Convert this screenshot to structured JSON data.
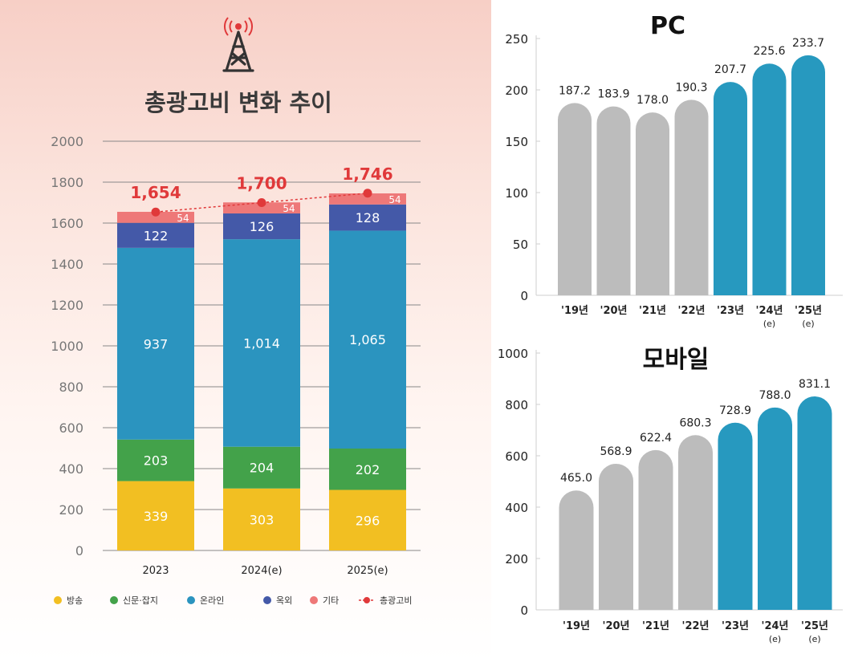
{
  "colors": {
    "broadcast": "#f2bf22",
    "print": "#43a24a",
    "online": "#2b94bf",
    "outdoor": "#4459a8",
    "other": "#ee7878",
    "total": "#e0393a",
    "pc_past": "#bcbcbc",
    "pc_forecast": "#2799bf"
  },
  "chart_data": [
    {
      "type": "bar",
      "stacked": true,
      "icon": "broadcast-tower-icon",
      "title": "총광고비 변화 추이",
      "categories": [
        "2023",
        "2024(e)",
        "2025(e)"
      ],
      "series": [
        {
          "name": "방송",
          "values": [
            339,
            303,
            296
          ]
        },
        {
          "name": "신문·잡지",
          "values": [
            203,
            204,
            202
          ]
        },
        {
          "name": "온라인",
          "values": [
            937,
            1014,
            1065
          ]
        },
        {
          "name": "옥외",
          "values": [
            122,
            126,
            128
          ]
        },
        {
          "name": "기타",
          "values": [
            54,
            54,
            54
          ]
        }
      ],
      "total_line": {
        "name": "총광고비",
        "values": [
          1654,
          1700,
          1746
        ],
        "labels": [
          "1,654",
          "1,700",
          "1,746"
        ]
      },
      "value_labels": [
        [
          "339",
          "203",
          "937",
          "122",
          "54"
        ],
        [
          "303",
          "204",
          "1,014",
          "126",
          "54"
        ],
        [
          "296",
          "202",
          "1,065",
          "128",
          "54"
        ]
      ],
      "yticks": [
        "0",
        "200",
        "400",
        "600",
        "800",
        "1000",
        "1200",
        "1400",
        "1600",
        "1800",
        "2000"
      ],
      "ylim": [
        0,
        2000
      ],
      "legend": [
        "방송",
        "신문·잡지",
        "온라인",
        "옥외",
        "기타",
        "총광고비"
      ],
      "legend_position": "bottom"
    },
    {
      "type": "bar",
      "title": "PC",
      "categories": [
        "'19년",
        "'20년",
        "'21년",
        "'22년",
        "'23년",
        "'24년\n(e)",
        "'25년\n(e)"
      ],
      "category_lines": [
        [
          "'19년"
        ],
        [
          "'20년"
        ],
        [
          "'21년"
        ],
        [
          "'22년"
        ],
        [
          "'23년"
        ],
        [
          "'24년",
          "(e)"
        ],
        [
          "'25년",
          "(e)"
        ]
      ],
      "values": [
        187.2,
        183.9,
        178.0,
        190.3,
        207.7,
        225.6,
        233.7
      ],
      "value_labels": [
        "187.2",
        "183.9",
        "178.0",
        "190.3",
        "207.7",
        "225.6",
        "233.7"
      ],
      "forecast_from_index": 4,
      "yticks": [
        "0",
        "50",
        "100",
        "150",
        "200",
        "250"
      ],
      "ylim": [
        0,
        250
      ]
    },
    {
      "type": "bar",
      "title": "모바일",
      "categories": [
        "'19년",
        "'20년",
        "'21년",
        "'22년",
        "'23년",
        "'24년\n(e)",
        "'25년\n(e)"
      ],
      "category_lines": [
        [
          "'19년"
        ],
        [
          "'20년"
        ],
        [
          "'21년"
        ],
        [
          "'22년"
        ],
        [
          "'23년"
        ],
        [
          "'24년",
          "(e)"
        ],
        [
          "'25년",
          "(e)"
        ]
      ],
      "values": [
        465.0,
        568.9,
        622.4,
        680.3,
        728.9,
        788.0,
        831.1
      ],
      "value_labels": [
        "465.0",
        "568.9",
        "622.4",
        "680.3",
        "728.9",
        "788.0",
        "831.1"
      ],
      "forecast_from_index": 4,
      "yticks": [
        "0",
        "200",
        "400",
        "600",
        "800",
        "1000"
      ],
      "ylim": [
        0,
        1000
      ]
    }
  ]
}
